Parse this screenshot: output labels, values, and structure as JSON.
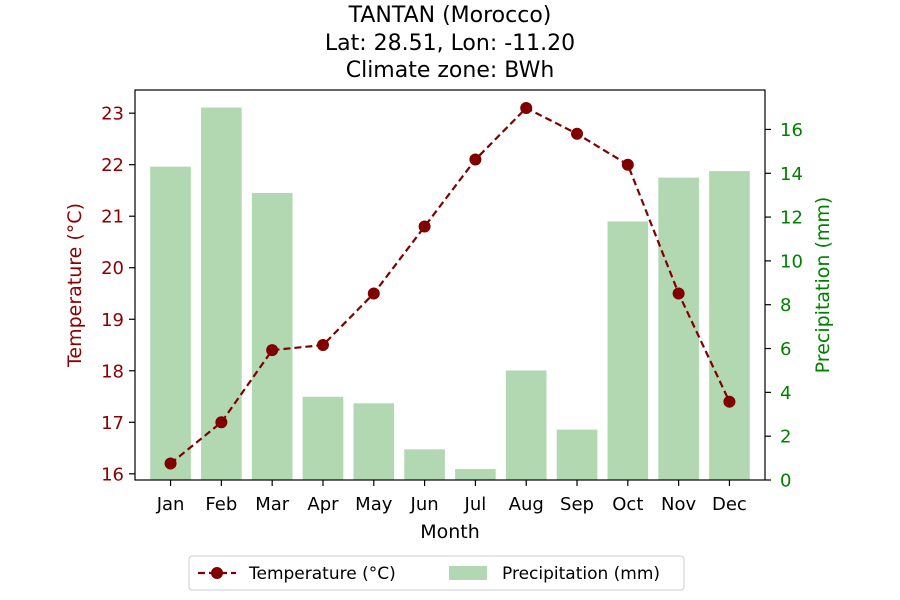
{
  "chart_data": {
    "type": "bar+line",
    "title_lines": [
      "TANTAN (Morocco)",
      "Lat: 28.51, Lon: -11.20",
      "Climate zone: BWh"
    ],
    "xlabel": "Month",
    "ylabel_left": "Temperature (°C)",
    "ylabel_right": "Precipitation (mm)",
    "categories": [
      "Jan",
      "Feb",
      "Mar",
      "Apr",
      "May",
      "Jun",
      "Jul",
      "Aug",
      "Sep",
      "Oct",
      "Nov",
      "Dec"
    ],
    "temperature": {
      "name": "Temperature (°C)",
      "values": [
        16.2,
        17.0,
        18.4,
        18.5,
        19.5,
        20.8,
        22.1,
        23.1,
        22.6,
        22.0,
        19.5,
        17.4
      ],
      "color": "#800000",
      "ylim": [
        15.88,
        23.45
      ],
      "ticks": [
        16,
        17,
        18,
        19,
        20,
        21,
        22,
        23
      ]
    },
    "precipitation": {
      "name": "Precipitation (mm)",
      "values": [
        14.3,
        17.0,
        13.1,
        3.8,
        3.5,
        1.4,
        0.5,
        5.0,
        2.3,
        11.8,
        13.8,
        14.1
      ],
      "color": "#b2d8b2",
      "ylim": [
        0,
        17.8
      ],
      "ticks": [
        0,
        2,
        4,
        6,
        8,
        10,
        12,
        14,
        16
      ]
    },
    "left_axis_color": "#8b0000",
    "right_axis_color": "#008000",
    "legend_position": "bottom-center"
  }
}
